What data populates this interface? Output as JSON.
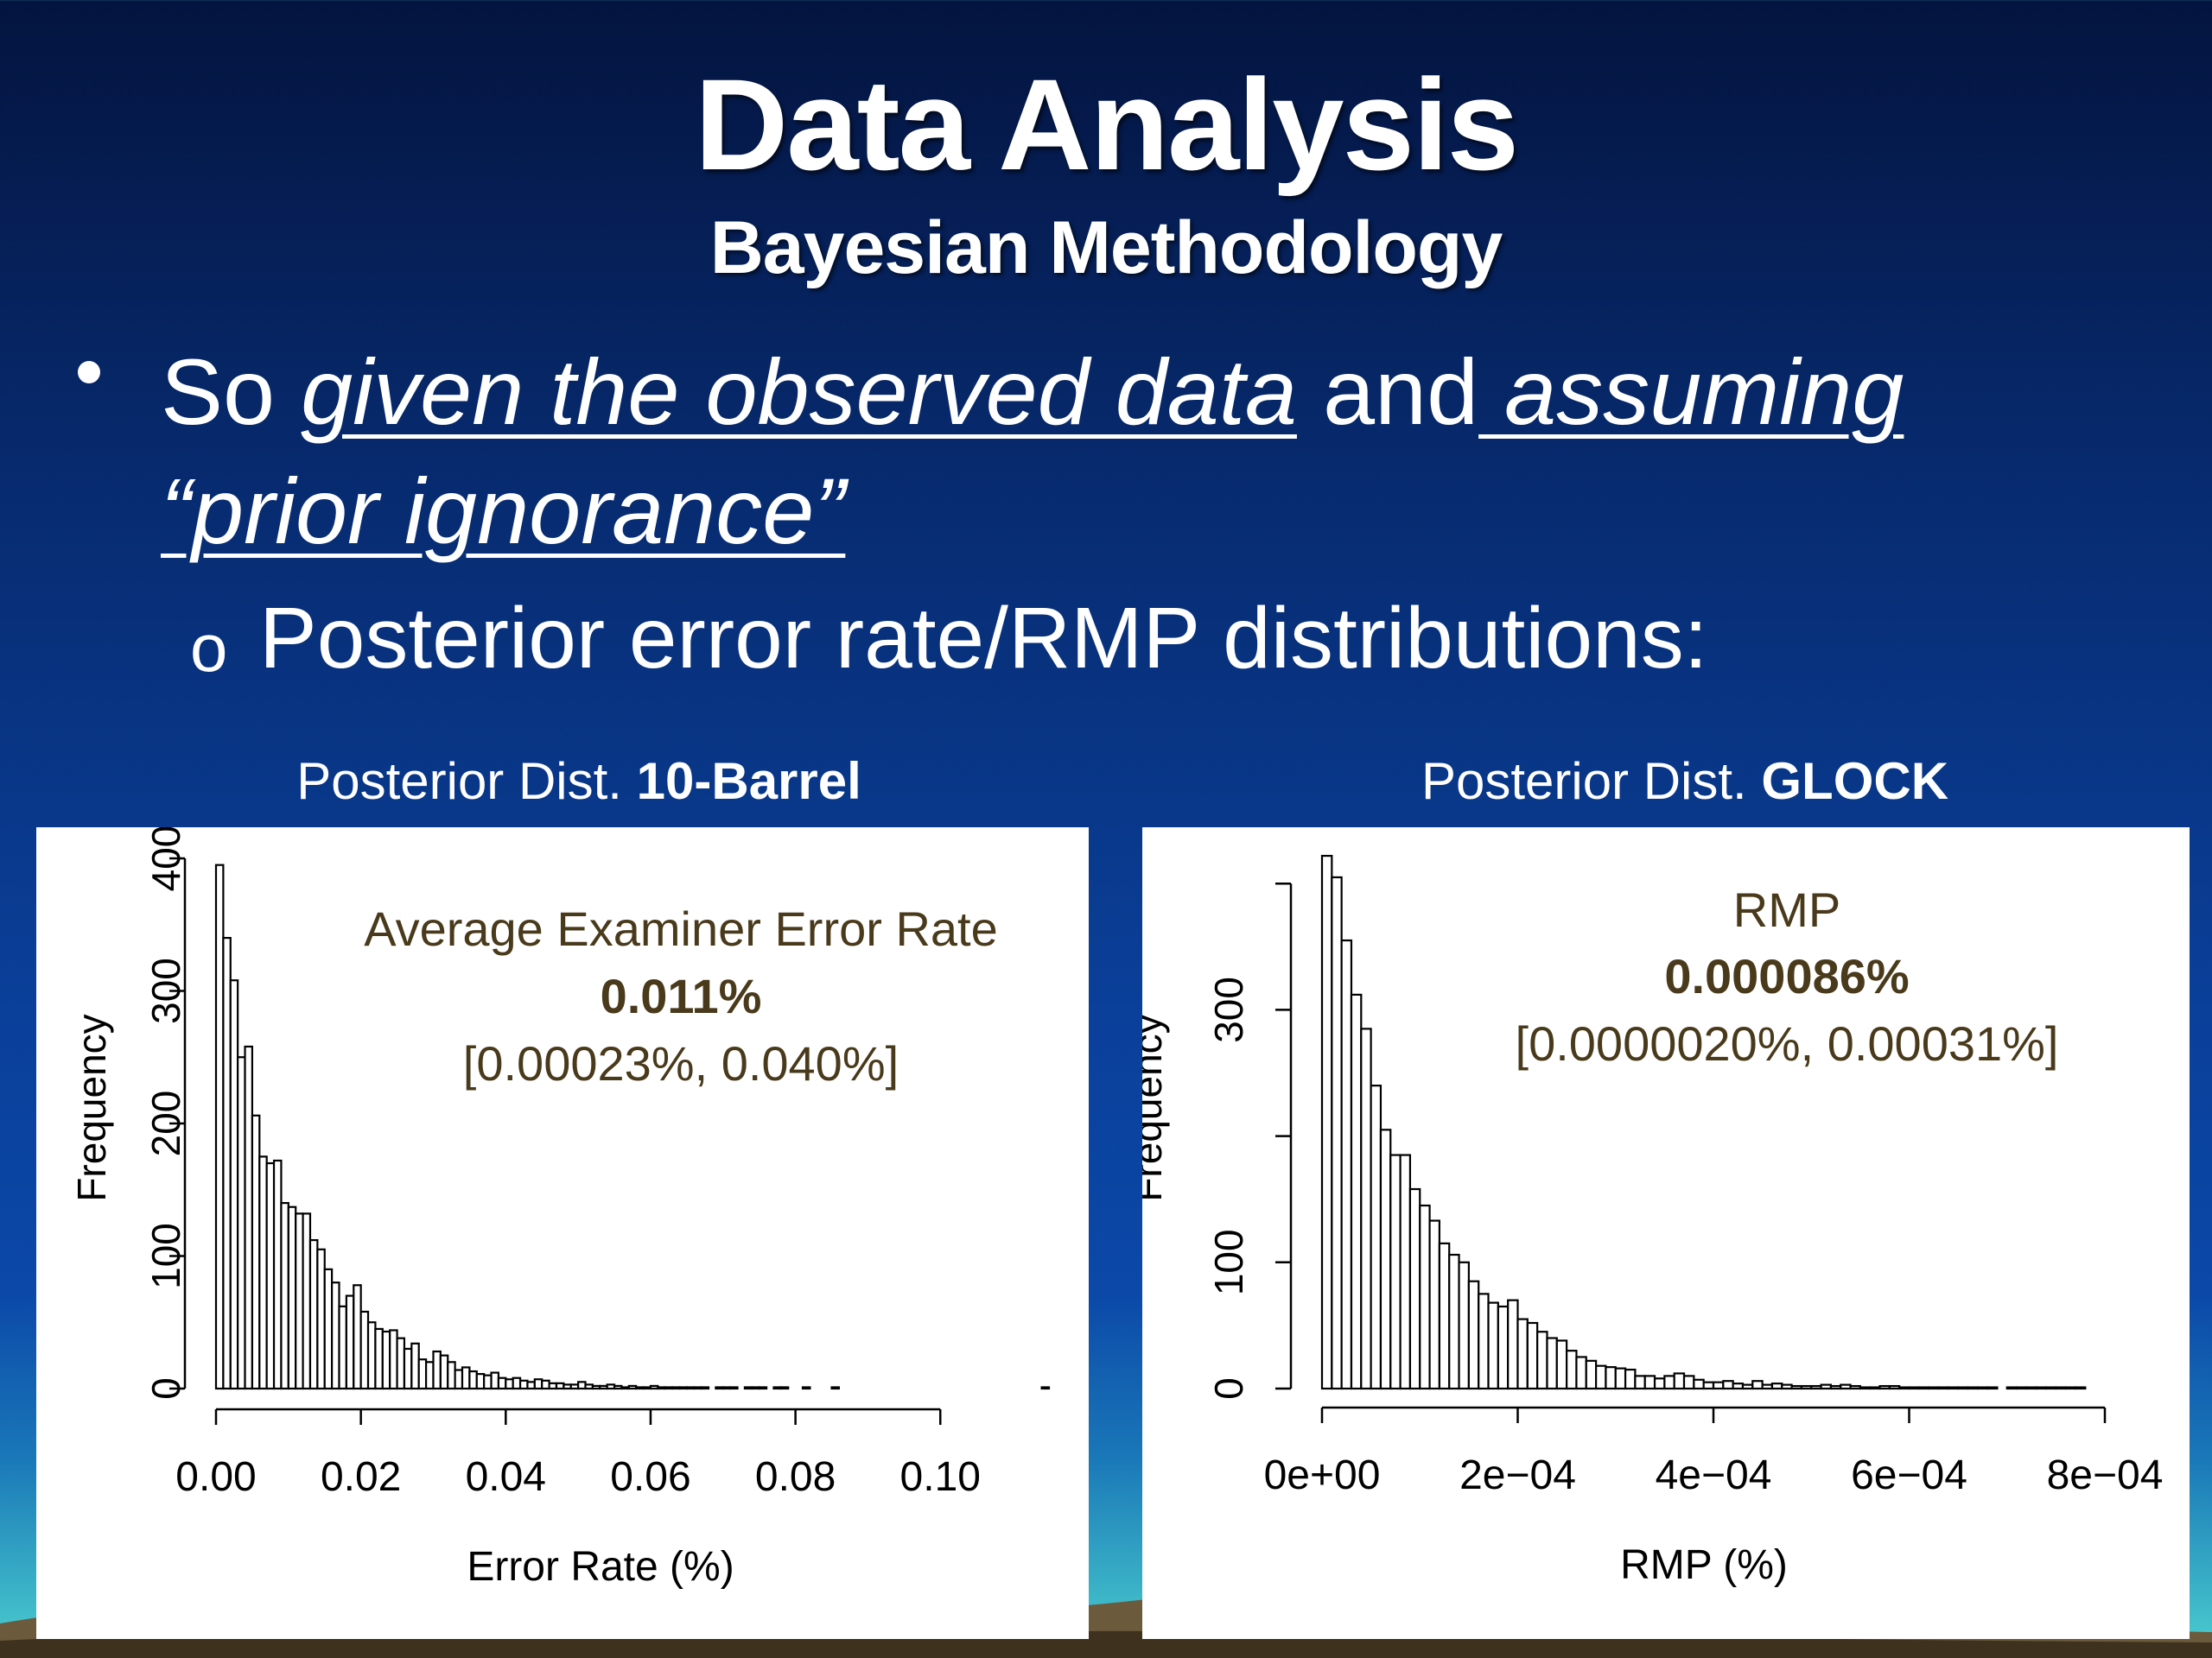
{
  "title": "Data Analysis",
  "subtitle": "Bayesian Methodology",
  "bullet": {
    "prefix": "So ",
    "phrase1": "given the observed data",
    "middle": " and",
    "phrase2": " assuming",
    "phrase3": "“prior ignorance”"
  },
  "sub_bullet": {
    "marker": "o",
    "text": "Posterior error rate/RMP distributions:"
  },
  "panels": [
    {
      "title_prefix": "Posterior Dist. ",
      "title_bold": "10-Barrel"
    },
    {
      "title_prefix": "Posterior Dist. ",
      "title_bold": "GLOCK"
    }
  ],
  "chart_data": [
    {
      "type": "bar",
      "xlabel": "Error Rate (%)",
      "ylabel": "Frequency",
      "xlim": [
        0,
        0.115
      ],
      "ylim": [
        0,
        400
      ],
      "x_ticks": [
        "0.00",
        "0.02",
        "0.04",
        "0.06",
        "0.08",
        "0.10"
      ],
      "x_tick_values": [
        0,
        0.02,
        0.04,
        0.06,
        0.08,
        0.1
      ],
      "y_ticks": [
        "0",
        "100",
        "200",
        "300",
        "400"
      ],
      "y_tick_values": [
        0,
        100,
        200,
        300,
        400
      ],
      "bin_width": 0.001,
      "values": [
        395,
        340,
        308,
        250,
        258,
        206,
        175,
        170,
        172,
        140,
        137,
        132,
        132,
        112,
        105,
        90,
        80,
        62,
        70,
        78,
        58,
        50,
        45,
        43,
        44,
        38,
        30,
        34,
        22,
        20,
        28,
        25,
        20,
        14,
        16,
        13,
        11,
        10,
        12,
        8,
        7,
        8,
        6,
        5,
        7,
        6,
        4,
        4,
        3,
        3,
        5,
        3,
        2,
        2,
        3,
        2,
        1,
        2,
        1,
        1,
        2,
        1,
        1,
        1,
        1,
        1,
        1,
        1,
        0,
        1,
        1,
        1,
        0,
        1,
        1,
        1,
        0,
        1,
        1,
        0,
        0,
        1,
        0,
        0,
        0,
        1,
        0,
        0,
        0,
        0,
        0,
        0,
        0,
        0,
        0,
        0,
        0,
        0,
        0,
        0,
        0,
        0,
        0,
        0,
        0,
        0,
        0,
        0,
        0,
        0,
        0,
        0,
        0,
        0,
        1
      ],
      "annotation": {
        "line1": "Average Examiner Error Rate",
        "line2": "0.011%",
        "line3": "[0.00023%, 0.040%]",
        "color": "#4a3a1c"
      }
    },
    {
      "type": "bar",
      "xlabel": "RMP (%)",
      "ylabel": "Frequency",
      "xlim": [
        0,
        0.0008
      ],
      "ylim": [
        0,
        420
      ],
      "x_ticks": [
        "0e+00",
        "2e−04",
        "4e−04",
        "6e−04",
        "8e−04"
      ],
      "x_tick_values": [
        0,
        0.0002,
        0.0004,
        0.0006,
        0.0008
      ],
      "y_ticks": [
        "0",
        "100",
        "300"
      ],
      "y_tick_values": [
        0,
        100,
        200,
        300,
        400
      ],
      "y_tick_labels": [
        "0",
        "100",
        "",
        "300",
        ""
      ],
      "bin_width": 1e-05,
      "values": [
        422,
        405,
        355,
        312,
        285,
        240,
        205,
        185,
        185,
        158,
        145,
        133,
        115,
        106,
        100,
        85,
        75,
        68,
        65,
        70,
        55,
        52,
        45,
        40,
        38,
        30,
        25,
        22,
        18,
        17,
        16,
        15,
        10,
        10,
        8,
        10,
        12,
        10,
        7,
        5,
        5,
        6,
        4,
        3,
        6,
        3,
        4,
        3,
        2,
        2,
        2,
        3,
        2,
        3,
        2,
        1,
        1,
        2,
        2,
        1,
        1,
        1,
        1,
        1,
        1,
        1,
        1,
        1,
        1,
        0,
        1,
        1,
        1,
        1,
        1,
        1,
        1,
        1
      ]
    },
    {
      "annotation_only": true,
      "line1": "RMP",
      "line2": "0.000086%",
      "line3": "[0.0000020%, 0.00031%]"
    }
  ]
}
